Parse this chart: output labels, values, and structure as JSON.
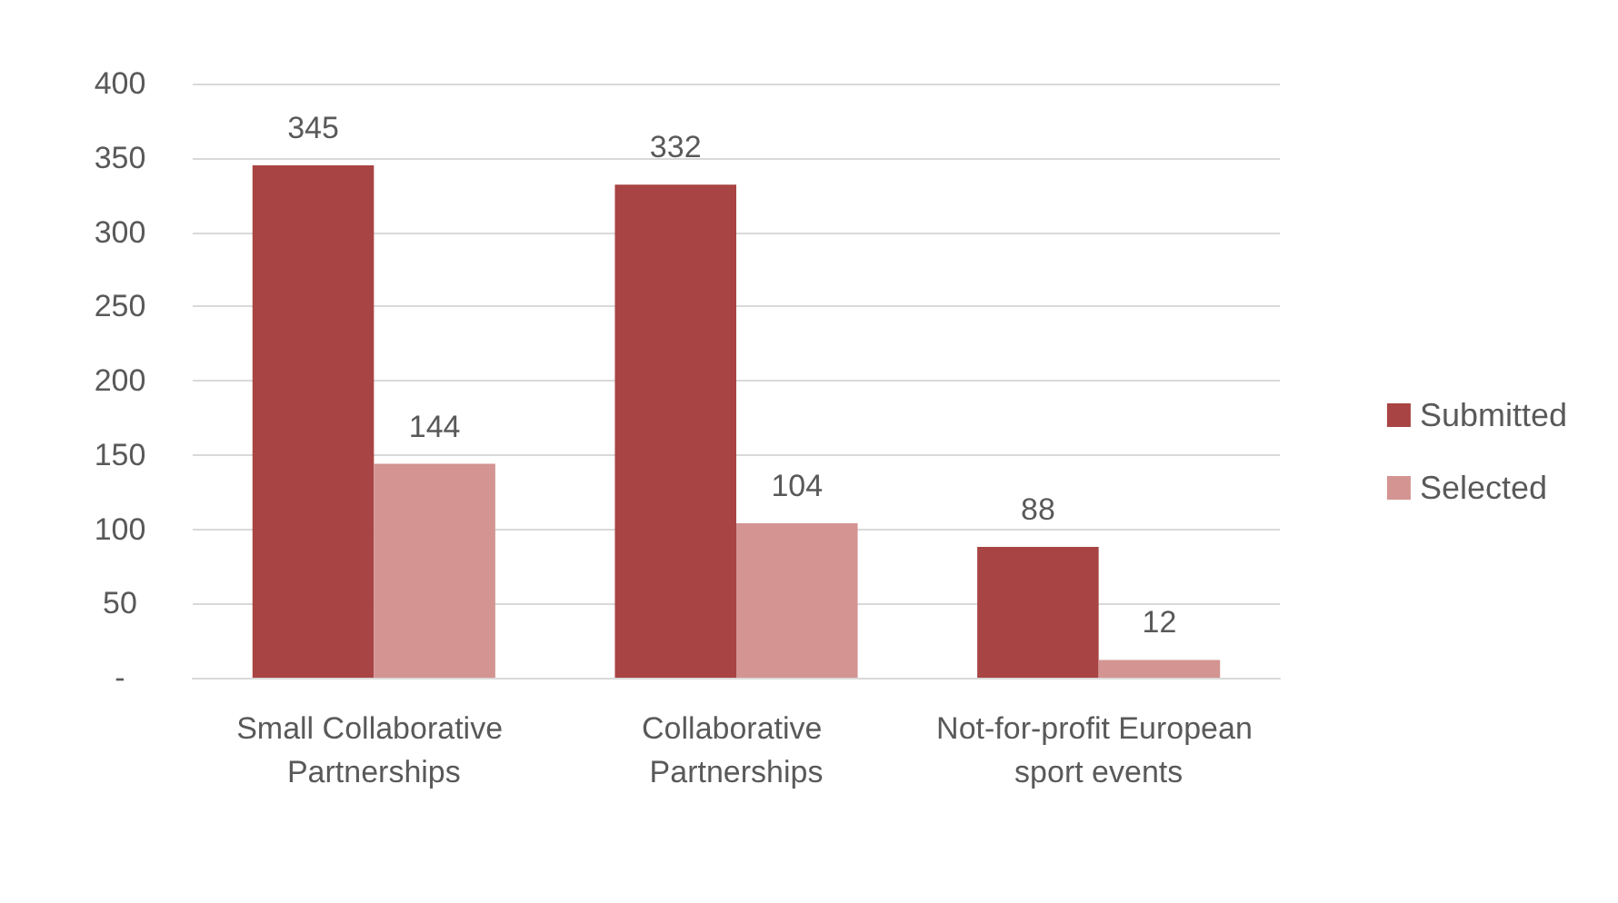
{
  "chart_data": {
    "type": "bar",
    "categories": [
      "Small Collaborative Partnerships",
      "Collaborative Partnerships",
      "Not-for-profit European sport events"
    ],
    "series": [
      {
        "name": "Submitted",
        "color": "#a84443",
        "values": [
          345,
          332,
          88
        ]
      },
      {
        "name": "Selected",
        "color": "#d39492",
        "values": [
          144,
          104,
          12
        ]
      }
    ],
    "ylim": [
      0,
      400
    ],
    "yticks": [
      {
        "value": 0,
        "label": "-"
      },
      50,
      100,
      150,
      200,
      250,
      300,
      350,
      400
    ],
    "grid": "y",
    "legend": "right",
    "data_labels": true
  }
}
